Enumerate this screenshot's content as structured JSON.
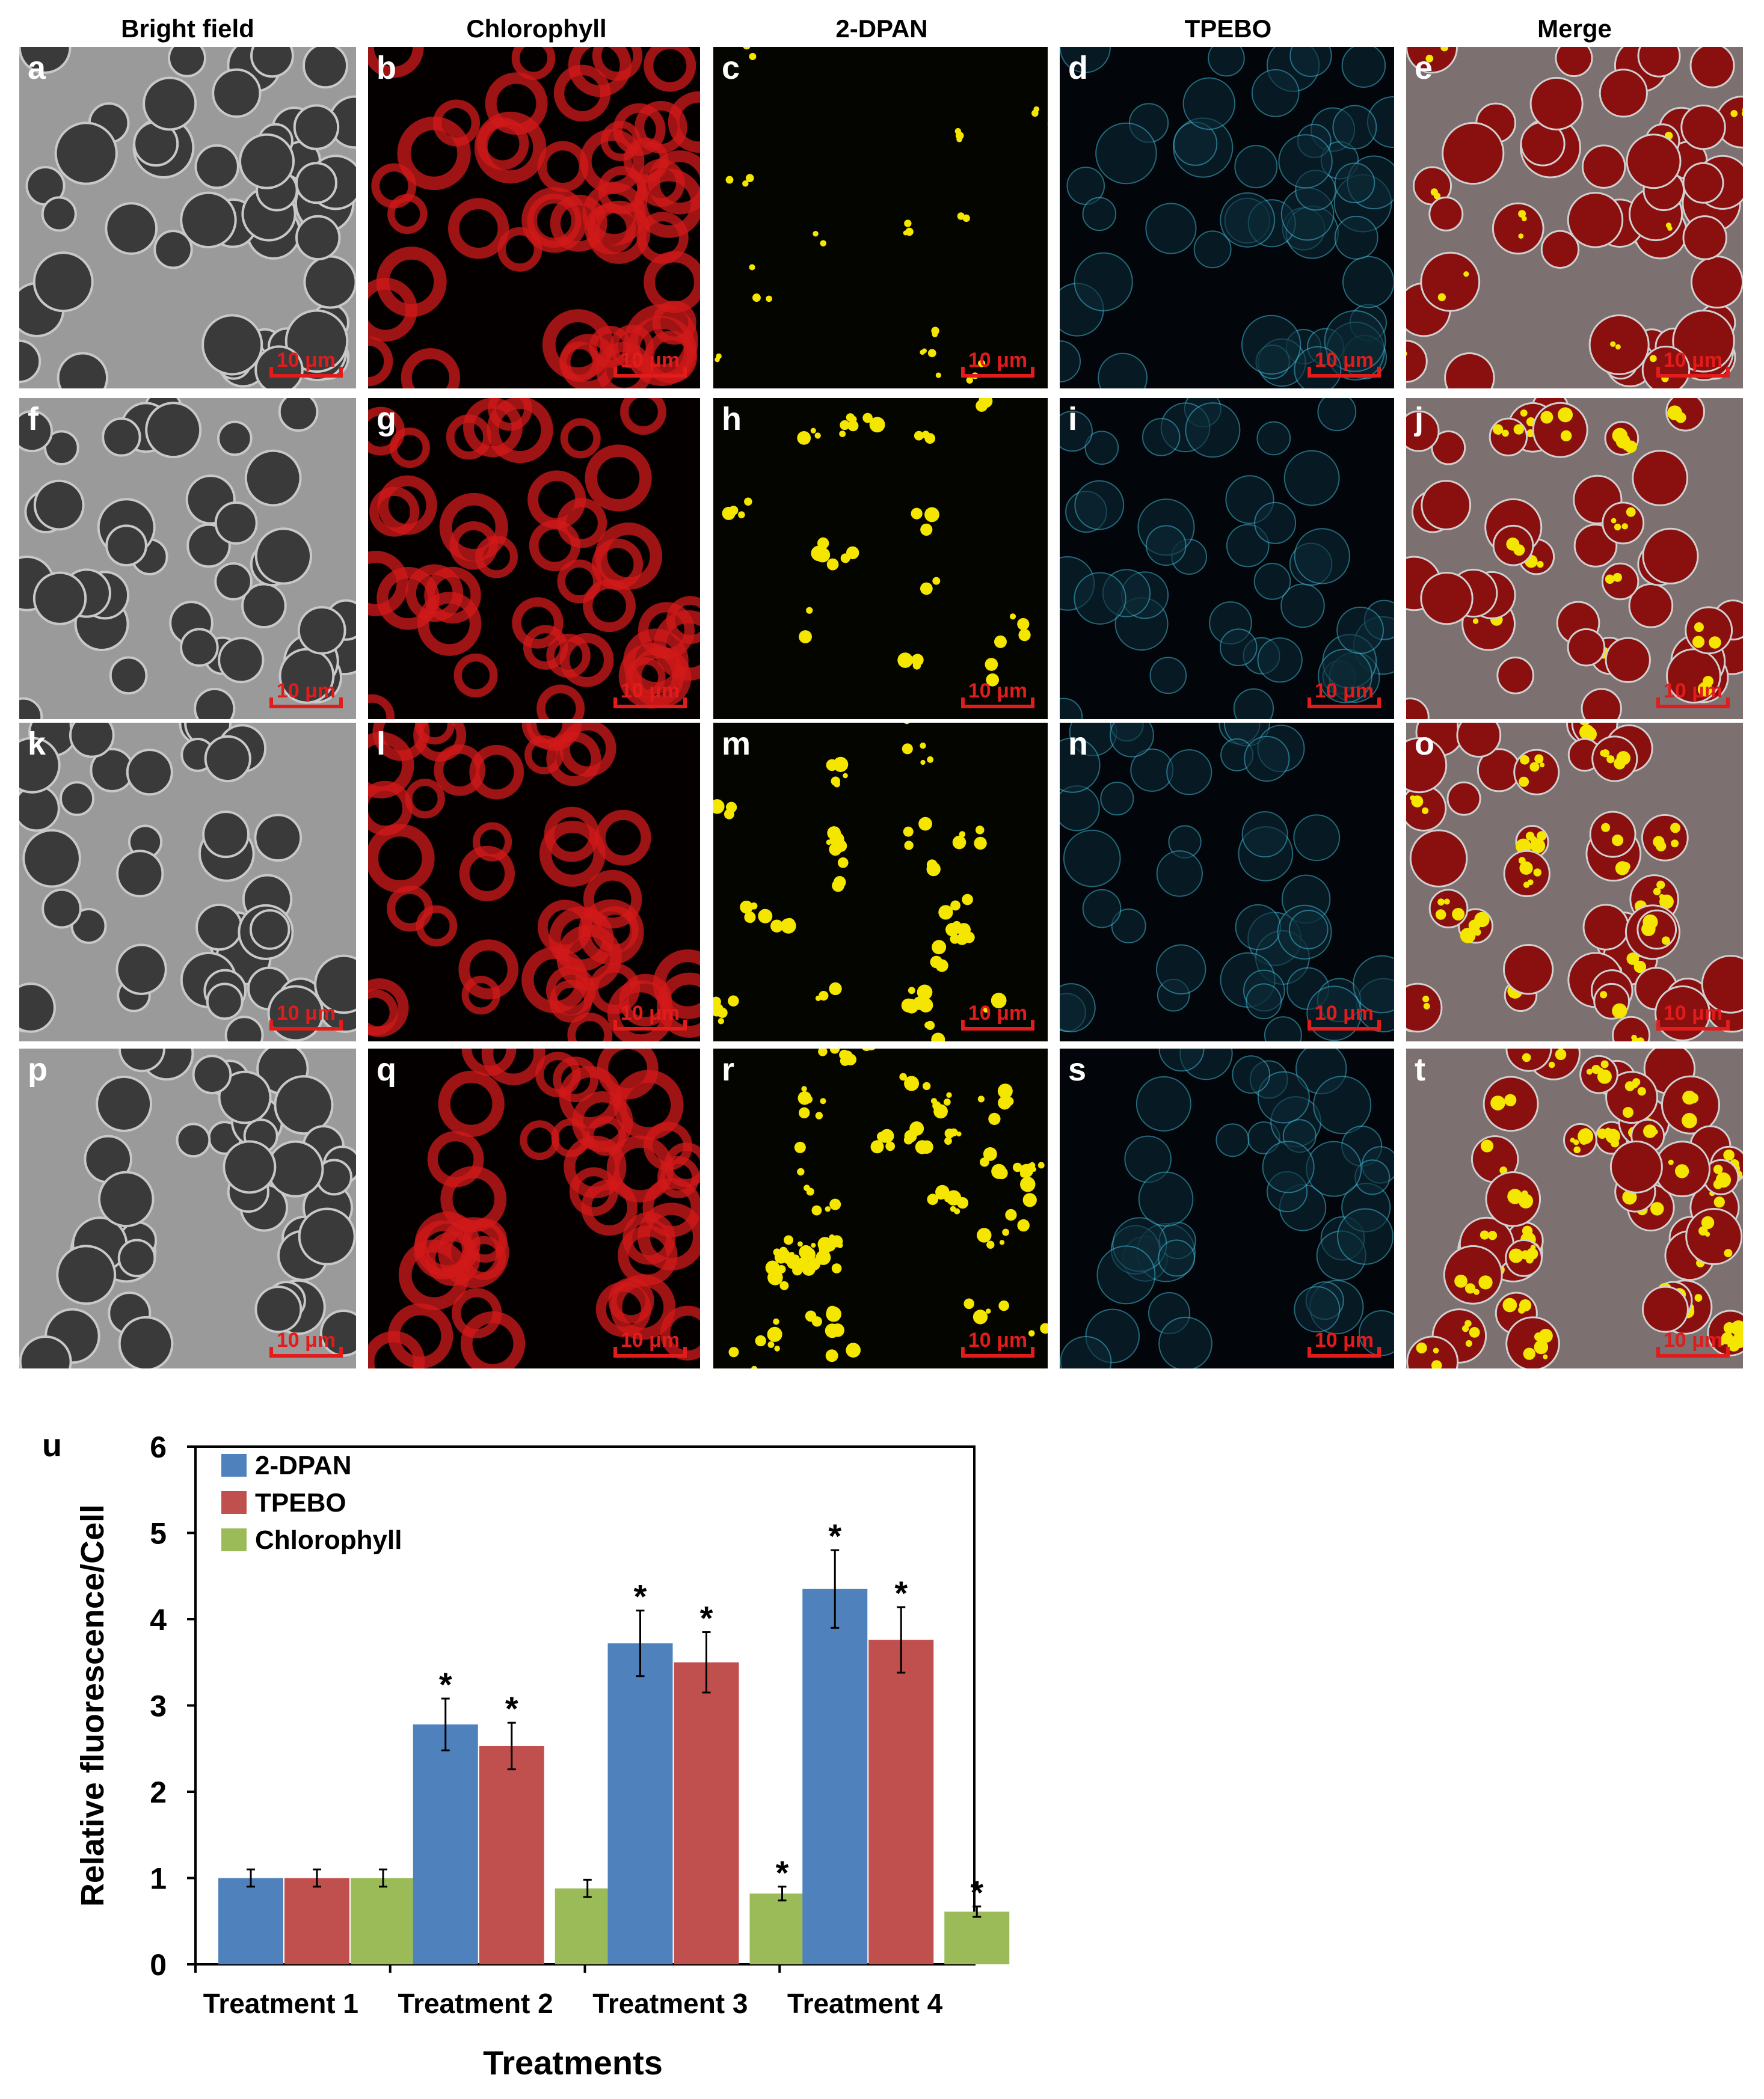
{
  "figure": {
    "column_headers": [
      "Bright field",
      "Chlorophyll",
      "2-DPAN",
      "TPEBO",
      "Merge"
    ],
    "scale_bar_label": "10 μm",
    "rows": [
      {
        "panels": [
          "a",
          "b",
          "c",
          "d",
          "e"
        ]
      },
      {
        "panels": [
          "f",
          "g",
          "h",
          "i",
          "j"
        ]
      },
      {
        "panels": [
          "k",
          "l",
          "m",
          "n",
          "o"
        ]
      },
      {
        "panels": [
          "p",
          "q",
          "r",
          "s",
          "t"
        ]
      }
    ],
    "channel_colors": {
      "bright_field": "#8c8c8c",
      "chlorophyll": "#d11a1a",
      "dpan": "#f5e600",
      "tpebo": "#3fb8d6",
      "arrow_white": "#ffffff",
      "arrow_red": "#e3141b",
      "arrow_orange": "#f59a4a"
    },
    "image_description_icon": "confocal-micrograph-icon"
  },
  "chart_data": {
    "panel_label": "u",
    "type": "bar",
    "categories": [
      "Treatment 1",
      "Treatment 2",
      "Treatment 3",
      "Treatment 4"
    ],
    "series": [
      {
        "name": "2-DPAN",
        "color": "#4f81bd",
        "values": [
          1.0,
          2.78,
          3.72,
          4.35
        ],
        "errors": [
          0.1,
          0.3,
          0.38,
          0.45
        ],
        "significant": [
          false,
          true,
          true,
          true
        ]
      },
      {
        "name": "TPEBO",
        "color": "#c0504d",
        "values": [
          1.0,
          2.53,
          3.5,
          3.76
        ],
        "errors": [
          0.1,
          0.27,
          0.35,
          0.38
        ],
        "significant": [
          false,
          true,
          true,
          true
        ]
      },
      {
        "name": "Chlorophyll",
        "color": "#9bbb59",
        "values": [
          1.0,
          0.88,
          0.82,
          0.61
        ],
        "errors": [
          0.1,
          0.1,
          0.08,
          0.06
        ],
        "significant": [
          false,
          false,
          true,
          true
        ]
      }
    ],
    "significance_marker": "*",
    "title": "",
    "xlabel": "Treatments",
    "ylabel": "Relative fluorescence/Cell",
    "ylim": [
      0,
      6
    ],
    "yticks": [
      "0",
      "1",
      "2",
      "3",
      "4",
      "5",
      "6"
    ],
    "legend_position": "top-left",
    "grid": false
  }
}
